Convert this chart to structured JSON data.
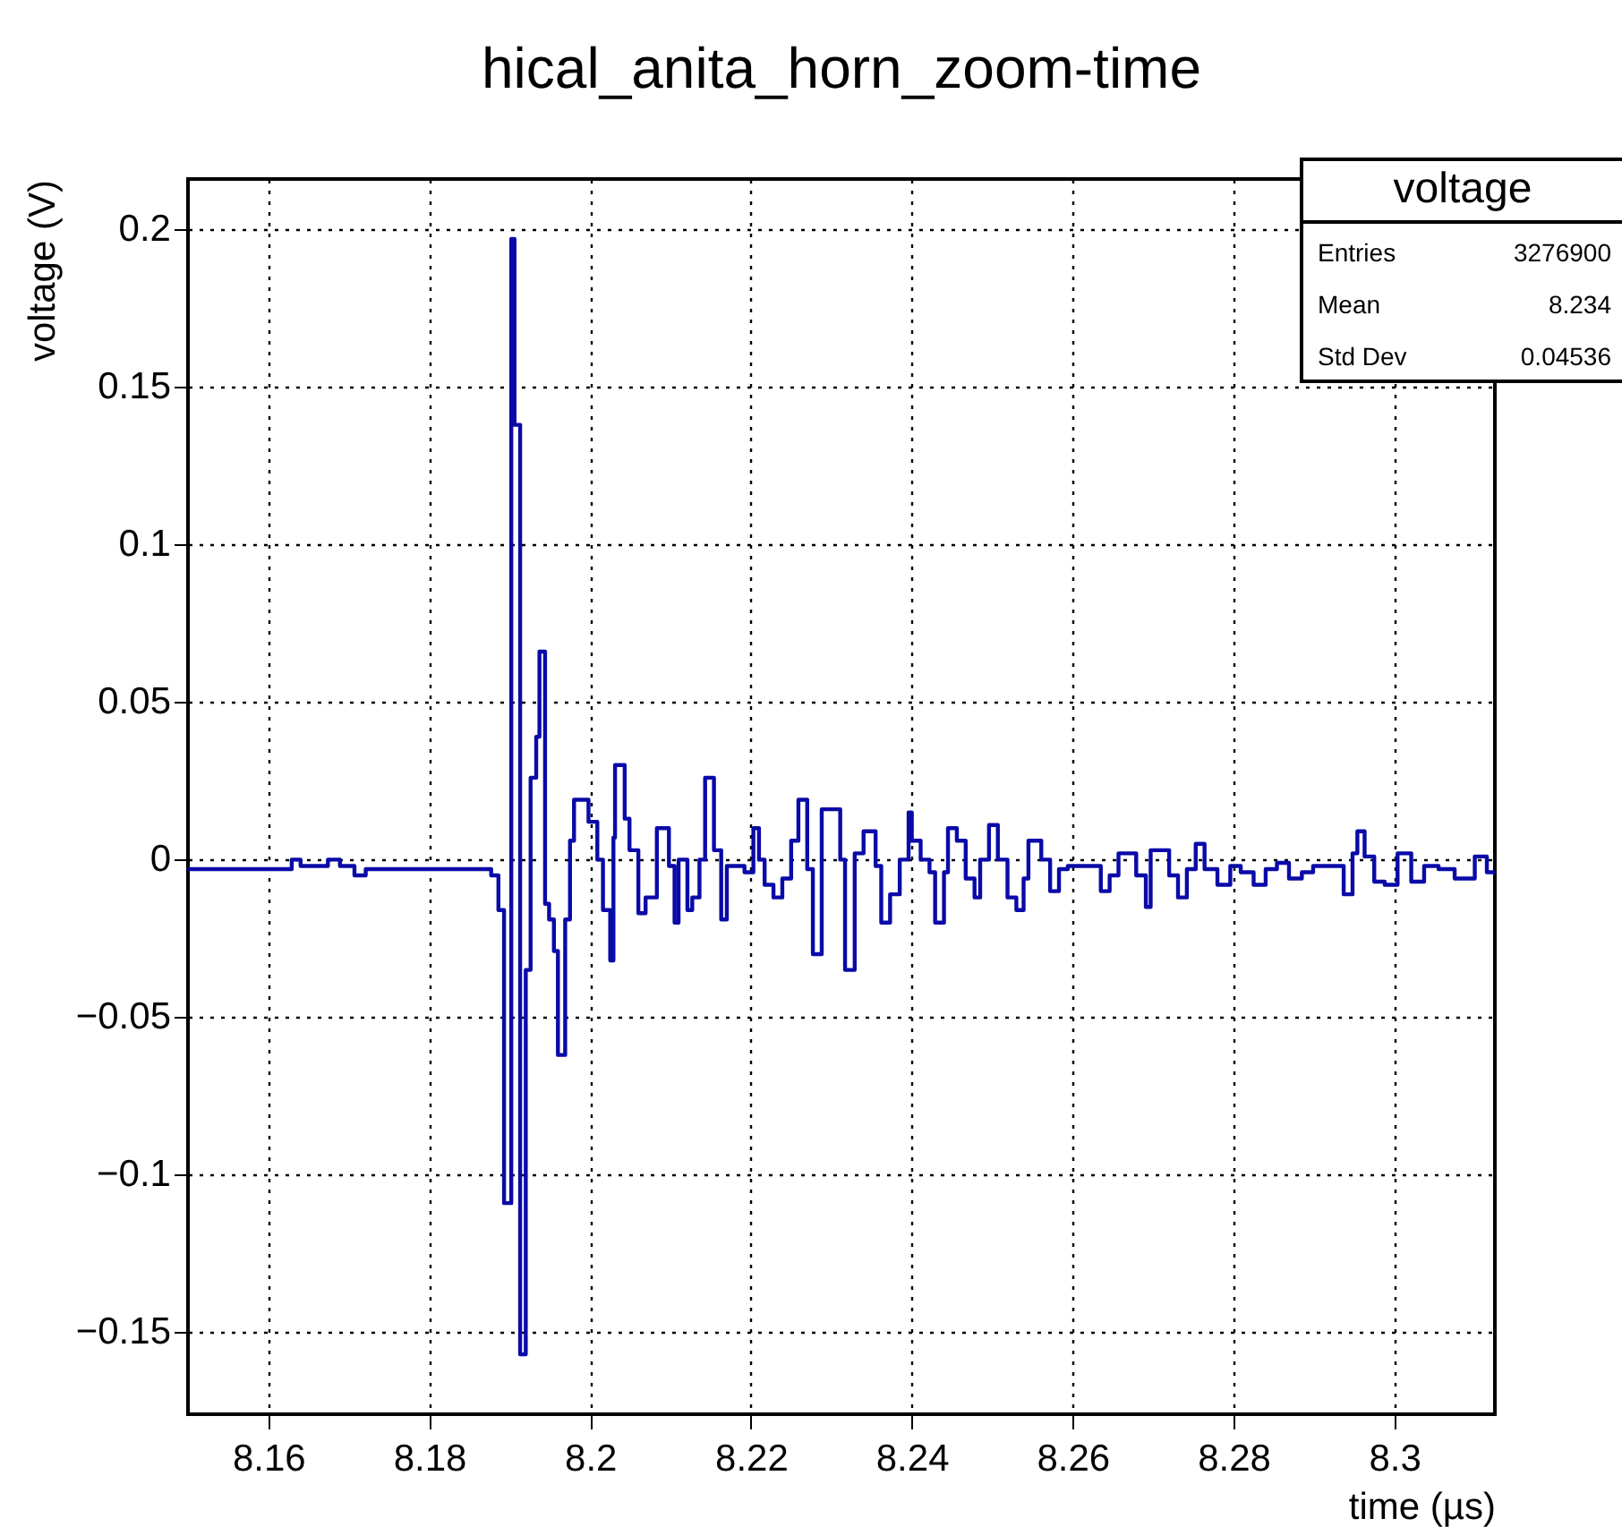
{
  "chart_data": {
    "type": "step",
    "title": "hical_anita_horn_zoom-time",
    "xlabel": "time (µs)",
    "ylabel": "voltage (V)",
    "color": "#0a0aa8",
    "x": [
      8.15,
      8.1629,
      8.164,
      8.1674,
      8.1689,
      8.1707,
      8.1721,
      8.1877,
      8.1886,
      8.1893,
      8.1902,
      8.1906,
      8.1913,
      8.192,
      8.1926,
      8.1933,
      8.1937,
      8.1944,
      8.1949,
      8.1955,
      8.196,
      8.1969,
      8.1975,
      8.198,
      8.1998,
      8.2009,
      8.2016,
      8.2025,
      8.2029,
      8.2031,
      8.2043,
      8.2049,
      8.206,
      8.2069,
      8.2083,
      8.2098,
      8.2105,
      8.211,
      8.2121,
      8.2127,
      8.2136,
      8.2143,
      8.2154,
      8.2163,
      8.217,
      8.2192,
      8.2203,
      8.221,
      8.2217,
      8.2228,
      8.2239,
      8.225,
      8.2259,
      8.227,
      8.2277,
      8.2288,
      8.2311,
      8.2317,
      8.2329,
      8.234,
      8.2355,
      8.2362,
      8.2373,
      8.2385,
      8.2396,
      8.24,
      8.2411,
      8.2422,
      8.2429,
      8.244,
      8.2445,
      8.2456,
      8.2467,
      8.2478,
      8.2485,
      8.2496,
      8.2507,
      8.2519,
      8.253,
      8.2539,
      8.2545,
      8.2561,
      8.2572,
      8.2583,
      8.2594,
      8.2635,
      8.2646,
      8.2657,
      8.2679,
      8.2691,
      8.2697,
      8.272,
      8.2731,
      8.2742,
      8.2753,
      8.2764,
      8.278,
      8.2796,
      8.2809,
      8.2825,
      8.284,
      8.2854,
      8.2869,
      8.2885,
      8.2899,
      8.2937,
      8.2948,
      8.2954,
      8.2963,
      8.2975,
      8.2988,
      8.3004,
      8.3021,
      8.3037,
      8.3055,
      8.3075,
      8.31,
      8.3115,
      8.3125
    ],
    "values": [
      -0.003,
      0.0,
      -0.002,
      0.0,
      -0.002,
      -0.005,
      -0.003,
      -0.005,
      -0.016,
      -0.109,
      0.197,
      0.138,
      -0.157,
      -0.035,
      0.026,
      0.039,
      0.066,
      -0.014,
      -0.019,
      -0.029,
      -0.062,
      -0.019,
      0.006,
      0.019,
      0.012,
      0.0,
      -0.016,
      -0.032,
      0.007,
      0.03,
      0.013,
      0.003,
      -0.017,
      -0.012,
      0.01,
      -0.002,
      -0.02,
      0.0,
      -0.016,
      -0.012,
      0.0,
      0.026,
      0.003,
      -0.019,
      -0.002,
      -0.004,
      0.01,
      0.0,
      -0.008,
      -0.012,
      -0.006,
      0.006,
      0.019,
      -0.003,
      -0.03,
      0.016,
      0.0,
      -0.035,
      0.002,
      0.009,
      -0.002,
      -0.02,
      -0.011,
      0.0,
      0.015,
      0.006,
      0.0,
      -0.004,
      -0.02,
      -0.004,
      0.01,
      0.006,
      -0.006,
      -0.012,
      0.0,
      0.011,
      0.0,
      -0.012,
      -0.016,
      -0.006,
      0.006,
      0.0,
      -0.01,
      -0.003,
      -0.002,
      -0.01,
      -0.005,
      0.002,
      -0.005,
      -0.015,
      0.003,
      -0.005,
      -0.012,
      -0.003,
      0.005,
      -0.003,
      -0.008,
      -0.002,
      -0.004,
      -0.008,
      -0.003,
      -0.001,
      -0.006,
      -0.004,
      -0.002,
      -0.011,
      0.002,
      0.009,
      0.001,
      -0.007,
      -0.008,
      0.002,
      -0.007,
      -0.002,
      -0.003,
      -0.006,
      0.001,
      -0.004,
      -0.004
    ],
    "xlim": [
      8.15,
      8.3125
    ],
    "ylim": [
      -0.176,
      0.216
    ],
    "xticks": [
      8.16,
      8.18,
      8.2,
      8.22,
      8.24,
      8.26,
      8.28,
      8.3
    ],
    "yticks": [
      -0.15,
      -0.1,
      -0.05,
      0,
      0.05,
      0.1,
      0.15,
      0.2
    ],
    "grid": true,
    "annotations": [
      "voltage",
      "Entries",
      "3276900",
      "Mean",
      "8.234",
      "Std Dev",
      "0.04536"
    ]
  }
}
